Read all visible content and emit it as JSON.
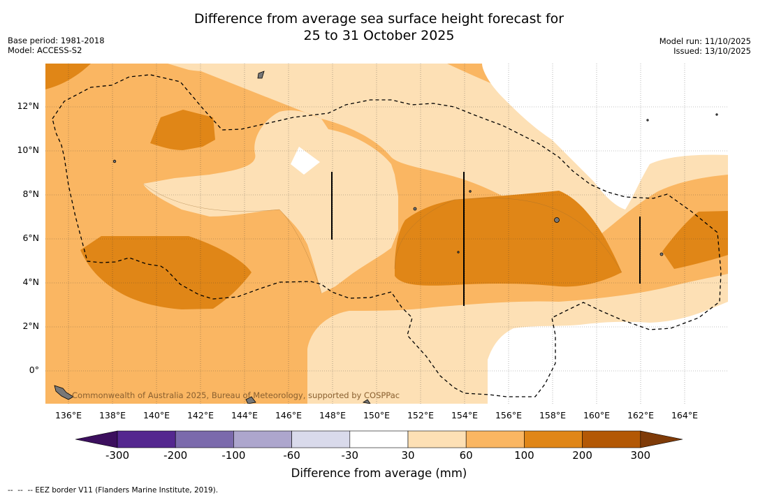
{
  "title": {
    "line1": "Difference from average sea surface height forecast for",
    "line2": "25 to 31 October 2025"
  },
  "info": {
    "base_period": "Base period: 1981-2018",
    "model": "Model: ACCESS-S2",
    "model_run": "Model run: 11/10/2025",
    "issued": "Issued: 13/10/2025"
  },
  "map": {
    "lat_ticks": [
      "12°N",
      "10°N",
      "8°N",
      "6°N",
      "4°N",
      "2°N",
      "0°"
    ],
    "lon_ticks": [
      "136°E",
      "138°E",
      "140°E",
      "142°E",
      "144°E",
      "146°E",
      "148°E",
      "150°E",
      "152°E",
      "154°E",
      "156°E",
      "158°E",
      "160°E",
      "162°E",
      "164°E"
    ],
    "credit": "Commonwealth of Australia 2025, Bureau of Meteorology, supported by COSPPac",
    "colors": {
      "ocean_base": "#fab662",
      "light": "#fde0b5",
      "dark": "#e08617",
      "white": "#ffffff"
    }
  },
  "colorbar": {
    "title": "Difference from average (mm)",
    "labels": [
      "-300",
      "-200",
      "-100",
      "-60",
      "-30",
      "30",
      "60",
      "100",
      "200",
      "300"
    ],
    "colors": [
      "#3c0f5e",
      "#54278f",
      "#7b6aac",
      "#ada6cd",
      "#d9daeb",
      "#ffffff",
      "#fde0b5",
      "#fab662",
      "#e08617",
      "#b35805",
      "#7f3b08"
    ]
  },
  "footnote": "--  --  -- EEZ border V11 (Flanders Marine Institute, 2019)."
}
